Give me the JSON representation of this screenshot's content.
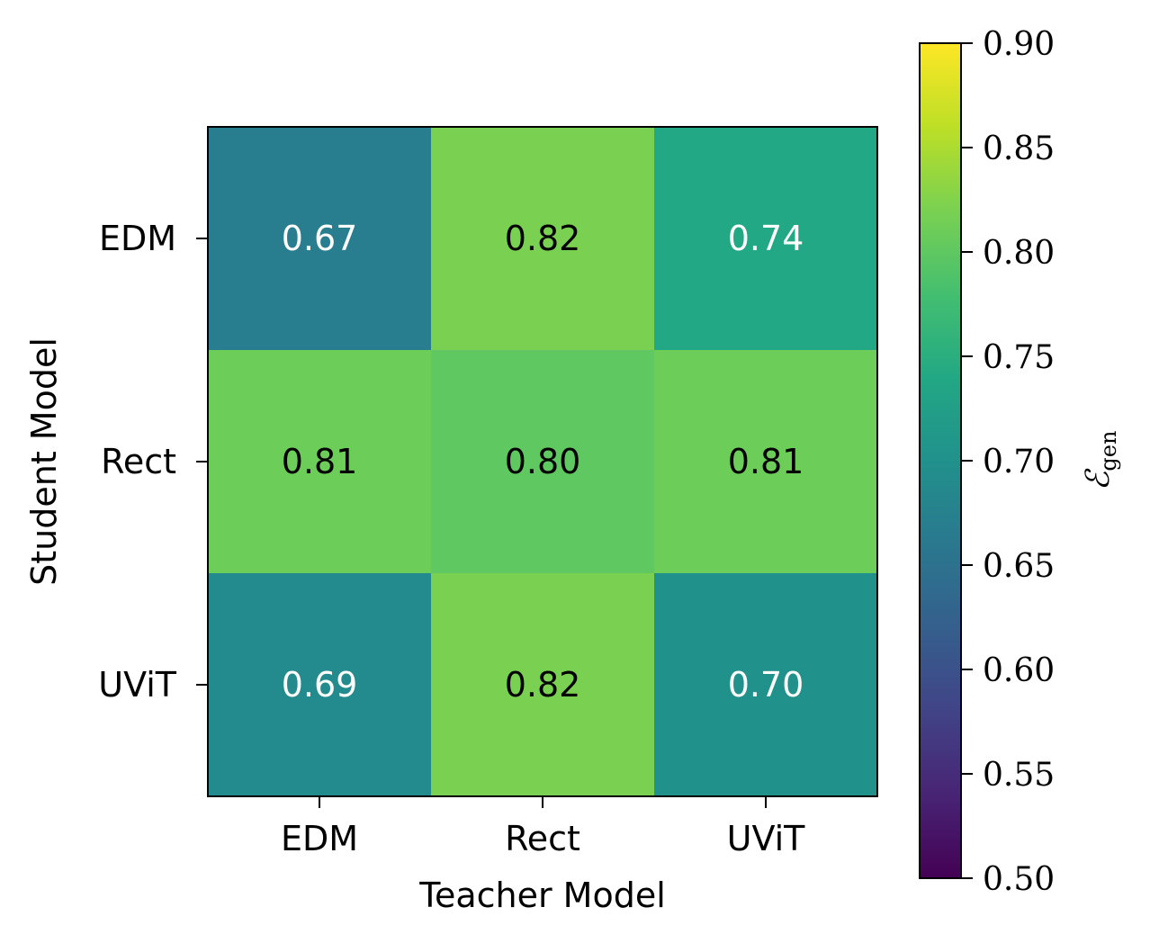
{
  "chart_data": {
    "type": "heatmap",
    "xlabel": "Teacher Model",
    "ylabel": "Student Model",
    "x_categories": [
      "EDM",
      "Rect",
      "UViT"
    ],
    "y_categories": [
      "EDM",
      "Rect",
      "UViT"
    ],
    "values": [
      [
        0.67,
        0.82,
        0.74
      ],
      [
        0.81,
        0.8,
        0.81
      ],
      [
        0.69,
        0.82,
        0.7
      ]
    ],
    "value_labels": [
      [
        "0.67",
        "0.82",
        "0.74"
      ],
      [
        "0.81",
        "0.80",
        "0.81"
      ],
      [
        "0.69",
        "0.82",
        "0.70"
      ]
    ],
    "colormap": "viridis",
    "colorbar": {
      "label_main": "ℰ",
      "label_sub": "gen",
      "range": [
        0.5,
        0.9
      ],
      "ticks": [
        0.5,
        0.55,
        0.6,
        0.65,
        0.7,
        0.75,
        0.8,
        0.85,
        0.9
      ],
      "tick_labels": [
        "0.50",
        "0.55",
        "0.60",
        "0.65",
        "0.70",
        "0.75",
        "0.80",
        "0.85",
        "0.90"
      ]
    },
    "grid": false
  }
}
